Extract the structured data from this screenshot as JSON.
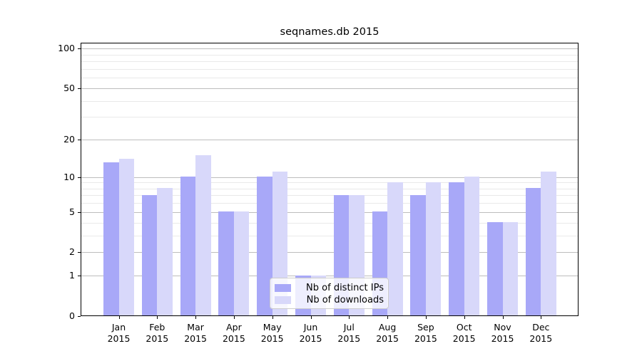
{
  "chart_data": {
    "type": "bar",
    "title": "seqnames.db 2015",
    "xlabel": "",
    "ylabel": "",
    "x_tick_year": "2015",
    "months": [
      "Jan",
      "Feb",
      "Mar",
      "Apr",
      "May",
      "Jun",
      "Jul",
      "Aug",
      "Sep",
      "Oct",
      "Nov",
      "Dec"
    ],
    "series": [
      {
        "name": "Nb of distinct IPs",
        "color": "#a8a8f8",
        "values": [
          13,
          7,
          10,
          5,
          10,
          1,
          7,
          5,
          7,
          9,
          4,
          8
        ]
      },
      {
        "name": "Nb of downloads",
        "color": "#d8d8fa",
        "values": [
          14,
          8,
          15,
          5,
          11,
          1,
          7,
          9,
          9,
          10,
          4,
          11
        ]
      }
    ],
    "yscale": "log1p",
    "y_major_ticks": [
      0,
      1,
      2,
      5,
      10,
      20,
      50,
      100
    ],
    "y_minor_ticks": [
      3,
      4,
      6,
      7,
      8,
      9,
      30,
      40,
      60,
      70,
      80,
      90
    ],
    "ylim": [
      0,
      110
    ],
    "grid": true,
    "legend_position": "lower-center"
  },
  "colors": {
    "major_grid": "#bdbdbd",
    "minor_grid": "#e9e9e9",
    "spine": "#000000",
    "legend_border": "#cccccc"
  }
}
